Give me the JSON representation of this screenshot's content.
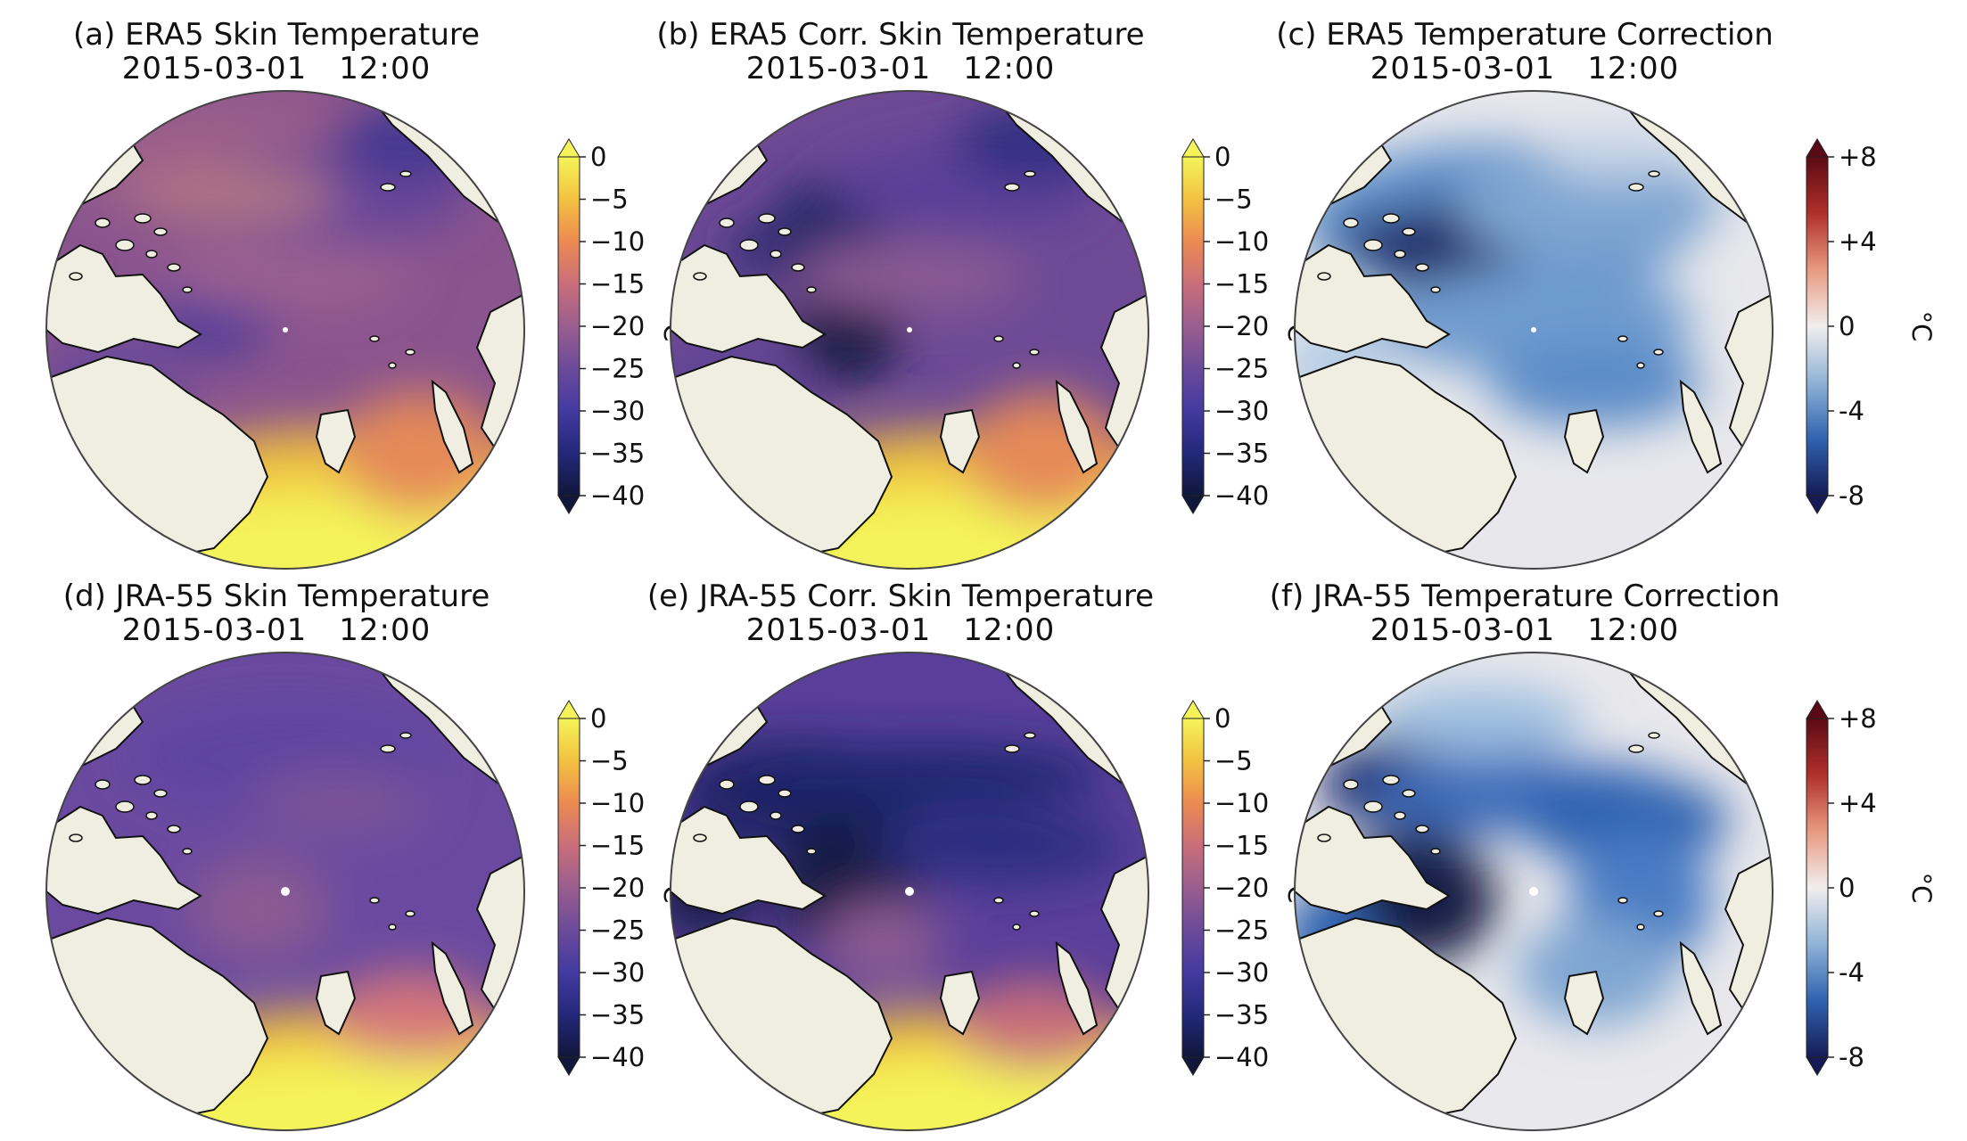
{
  "panels": [
    {
      "label": "(a) ERA5 Skin Temperature",
      "date": "2015-03-01",
      "time": "12:00",
      "colorbar": "temperature"
    },
    {
      "label": "(b) ERA5 Corr. Skin Temperature",
      "date": "2015-03-01",
      "time": "12:00",
      "colorbar": "temperature"
    },
    {
      "label": "(c) ERA5 Temperature Correction",
      "date": "2015-03-01",
      "time": "12:00",
      "colorbar": "correction"
    },
    {
      "label": "(d) JRA-55 Skin Temperature",
      "date": "2015-03-01",
      "time": "12:00",
      "colorbar": "temperature"
    },
    {
      "label": "(e) JRA-55 Corr. Skin Temperature",
      "date": "2015-03-01",
      "time": "12:00",
      "colorbar": "correction_free_temp"
    },
    {
      "label": "(f) JRA-55 Temperature Correction",
      "date": "2015-03-01",
      "time": "12:00",
      "colorbar": "correction"
    }
  ],
  "colorbars": {
    "temperature": {
      "unit": "°C",
      "range": [
        -40,
        0
      ],
      "ticks": [
        "0",
        "−5",
        "−10",
        "−15",
        "−20",
        "−25",
        "−30",
        "−35",
        "−40"
      ],
      "colors": [
        "#f4f45a",
        "#f3c240",
        "#ec8a52",
        "#c96e7a",
        "#9a5e8f",
        "#6b4a9a",
        "#433aa0",
        "#23287a",
        "#10173a"
      ]
    },
    "correction": {
      "unit": "°C",
      "range": [
        -8,
        8
      ],
      "ticks": [
        "+8",
        "+4",
        "0",
        "-4",
        "-8"
      ],
      "colors": [
        "#5a0a14",
        "#b0302a",
        "#e89a80",
        "#f1eeee",
        "#8fb3d6",
        "#2f62b0",
        "#161b55"
      ]
    }
  },
  "colors": {
    "land": "#efeee0",
    "frame": "#444444",
    "warm_ocean": "#f4f45a",
    "cold_core": "#141b45"
  }
}
